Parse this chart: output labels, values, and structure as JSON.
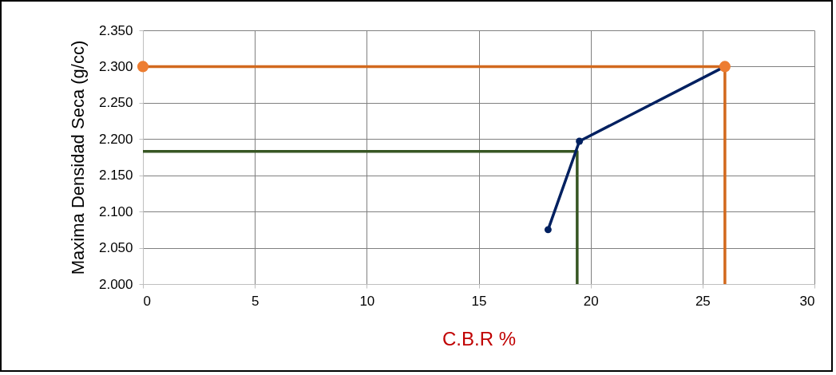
{
  "chart_data": {
    "type": "line",
    "xlabel": "C.B.R %",
    "ylabel": "Maxima Densidad Seca (g/cc)",
    "xlim": [
      0,
      30
    ],
    "xticks": [
      0,
      5,
      10,
      15,
      20,
      25,
      30
    ],
    "ylim": [
      2.0,
      2.35
    ],
    "yticks": [
      {
        "value": 2.0,
        "label": "2.000"
      },
      {
        "value": 2.05,
        "label": "2.050"
      },
      {
        "value": 2.1,
        "label": "2.100"
      },
      {
        "value": 2.15,
        "label": "2.150"
      },
      {
        "value": 2.2,
        "label": "2.200"
      },
      {
        "value": 2.25,
        "label": "2.250"
      },
      {
        "value": 2.3,
        "label": "2.300"
      },
      {
        "value": 2.35,
        "label": "2.350"
      }
    ],
    "grid": true,
    "series": [
      {
        "type": "line",
        "color": "#d2691e",
        "x": [
          0,
          26,
          26
        ],
        "values": [
          2.3,
          2.3,
          2.0
        ],
        "marker": "none"
      },
      {
        "type": "line",
        "color": "#375623",
        "x": [
          0,
          19.4,
          19.4
        ],
        "values": [
          2.183,
          2.183,
          2.0
        ],
        "marker": "none"
      },
      {
        "type": "line",
        "color": "#002060",
        "x": [
          18.1,
          19.5,
          26
        ],
        "values": [
          2.075,
          2.197,
          2.3
        ],
        "marker": "circle"
      },
      {
        "type": "scatter",
        "color": "#ed7d31",
        "x": [
          0,
          26
        ],
        "values": [
          2.3,
          2.3
        ],
        "marker": "circle"
      }
    ]
  }
}
